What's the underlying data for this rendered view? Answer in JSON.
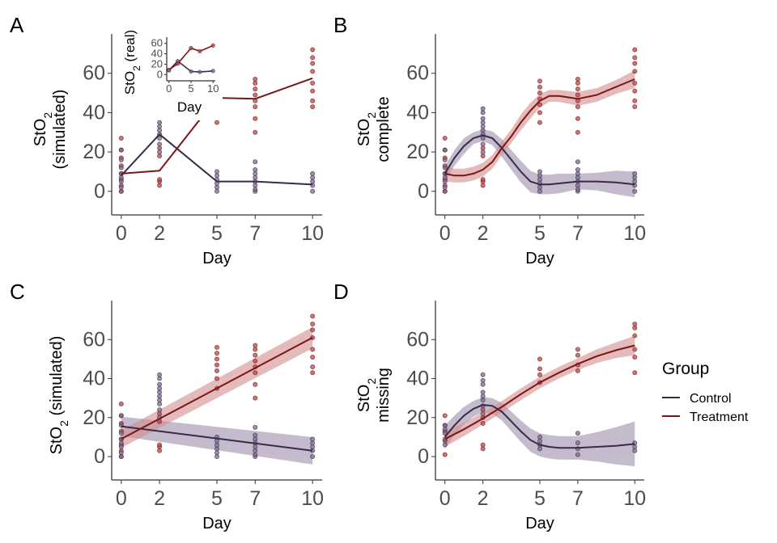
{
  "panels": {
    "A": {
      "tag": "A",
      "ylabel_line1": "StO",
      "ylabel_sub": "2",
      "ylabel_line2": "(simulated)",
      "xlabel": "Day",
      "inset": {
        "ylabel": "StO",
        "ylabel_sub": "2",
        "ylabel_rest": " (real)",
        "xlabel": "Day"
      }
    },
    "B": {
      "tag": "B",
      "ylabel_line1": "StO",
      "ylabel_sub": "2",
      "ylabel_line2": "complete",
      "xlabel": "Day"
    },
    "C": {
      "tag": "C",
      "ylabel_line1": "StO",
      "ylabel_sub": "2",
      "ylabel_rest": " (simulated)",
      "xlabel": "Day"
    },
    "D": {
      "tag": "D",
      "ylabel_line1": "StO",
      "ylabel_sub": "2",
      "ylabel_line2": "missing",
      "xlabel": "Day"
    }
  },
  "legend": {
    "title": "Group",
    "entries": [
      {
        "label": "Control",
        "color": "#3b2a4a"
      },
      {
        "label": "Treatment",
        "color": "#7b1516"
      }
    ]
  },
  "colors": {
    "control": "#3b2a4a",
    "treatment": "#7b1516",
    "control_band": "#9d8fab",
    "treatment_band": "#d48c8c",
    "control_point": "#7a6a8c",
    "treatment_point": "#b3484a"
  },
  "chart_data": [
    {
      "panel": "A",
      "type": "line",
      "xlabel": "Day",
      "ylabel": "StO2 (simulated)",
      "x_ticks": [
        0,
        2,
        5,
        7,
        10
      ],
      "y_ticks": [
        0,
        20,
        40,
        60
      ],
      "xlim": [
        -0.5,
        10.5
      ],
      "ylim": [
        -12,
        80
      ],
      "series": [
        {
          "name": "Control",
          "x": [
            0,
            2,
            5,
            7,
            10
          ],
          "y": [
            8,
            29,
            5,
            5,
            3.5
          ]
        },
        {
          "name": "Treatment",
          "x": [
            0,
            2,
            5,
            7,
            10
          ],
          "y": [
            9,
            10.5,
            47.5,
            47,
            57.5
          ]
        }
      ],
      "points": {
        "Control": [
          [
            0,
            0
          ],
          [
            0,
            2
          ],
          [
            0,
            5
          ],
          [
            0,
            7
          ],
          [
            0,
            9
          ],
          [
            0,
            12
          ],
          [
            0,
            16
          ],
          [
            0,
            21
          ],
          [
            2,
            20
          ],
          [
            2,
            24
          ],
          [
            2,
            27
          ],
          [
            2,
            29
          ],
          [
            2,
            31
          ],
          [
            2,
            33
          ],
          [
            2,
            35
          ],
          [
            2,
            37
          ],
          [
            2,
            40
          ],
          [
            2,
            42
          ],
          [
            5,
            0
          ],
          [
            5,
            2
          ],
          [
            5,
            4
          ],
          [
            5,
            6
          ],
          [
            5,
            8
          ],
          [
            5,
            10
          ],
          [
            7,
            0
          ],
          [
            7,
            1
          ],
          [
            7,
            3
          ],
          [
            7,
            5
          ],
          [
            7,
            7
          ],
          [
            7,
            9
          ],
          [
            7,
            11
          ],
          [
            7,
            15
          ],
          [
            10,
            0
          ],
          [
            10,
            3
          ],
          [
            10,
            5
          ],
          [
            10,
            7
          ],
          [
            10,
            9
          ]
        ],
        "Treatment": [
          [
            0,
            0
          ],
          [
            0,
            3
          ],
          [
            0,
            6
          ],
          [
            0,
            9
          ],
          [
            0,
            13
          ],
          [
            0,
            17
          ],
          [
            0,
            21
          ],
          [
            0,
            27
          ],
          [
            2,
            3
          ],
          [
            2,
            5
          ],
          [
            2,
            6
          ],
          [
            2,
            18
          ],
          [
            2,
            22
          ],
          [
            5,
            35
          ],
          [
            5,
            40
          ],
          [
            5,
            44
          ],
          [
            5,
            47
          ],
          [
            5,
            50
          ],
          [
            5,
            53
          ],
          [
            5,
            56
          ],
          [
            7,
            30
          ],
          [
            7,
            37
          ],
          [
            7,
            43
          ],
          [
            7,
            46
          ],
          [
            7,
            49
          ],
          [
            7,
            52
          ],
          [
            7,
            55
          ],
          [
            7,
            57
          ],
          [
            10,
            43
          ],
          [
            10,
            46
          ],
          [
            10,
            51
          ],
          [
            10,
            55
          ],
          [
            10,
            61
          ],
          [
            10,
            65
          ],
          [
            10,
            68
          ],
          [
            10,
            72
          ]
        ]
      }
    },
    {
      "panel": "A-inset",
      "type": "line",
      "xlabel": "Day",
      "ylabel": "StO2 (real)",
      "x_ticks": [
        0,
        5,
        10
      ],
      "y_ticks": [
        0,
        20,
        40,
        60
      ],
      "xlim": [
        -0.5,
        10.5
      ],
      "ylim": [
        -12,
        72
      ],
      "series": [
        {
          "name": "Control",
          "x": [
            0,
            2,
            5,
            7,
            10
          ],
          "y": [
            8,
            26,
            6,
            5,
            7
          ]
        },
        {
          "name": "Treatment",
          "x": [
            0,
            2,
            5,
            7,
            10
          ],
          "y": [
            9,
            21,
            51,
            45,
            56
          ]
        }
      ],
      "points": {
        "Control": [
          [
            0,
            8
          ],
          [
            2,
            26
          ],
          [
            5,
            6
          ],
          [
            7,
            5
          ],
          [
            10,
            7
          ]
        ],
        "Treatment": [
          [
            0,
            9
          ],
          [
            2,
            21
          ],
          [
            5,
            51
          ],
          [
            7,
            45
          ],
          [
            10,
            56
          ]
        ]
      }
    },
    {
      "panel": "B",
      "type": "line",
      "xlabel": "Day",
      "ylabel": "StO2 complete",
      "x_ticks": [
        0,
        2,
        5,
        7,
        10
      ],
      "y_ticks": [
        0,
        20,
        40,
        60
      ],
      "xlim": [
        -0.5,
        10.5
      ],
      "ylim": [
        -12,
        80
      ],
      "series": [
        {
          "name": "Control",
          "x": [
            0,
            0.5,
            1,
            1.5,
            2,
            2.5,
            3,
            3.5,
            4,
            4.5,
            5,
            5.5,
            6,
            7,
            8,
            9,
            10
          ],
          "y": [
            9,
            17,
            23,
            27,
            28.5,
            27,
            22,
            16,
            10,
            5,
            3.5,
            3.5,
            4,
            5,
            5,
            4.5,
            3.5
          ],
          "lower": [
            5,
            13,
            19,
            24,
            25.5,
            23.5,
            17.5,
            11,
            4.5,
            -0.5,
            -1.5,
            -1.5,
            -1,
            1,
            0.5,
            -1.5,
            -3
          ],
          "upper": [
            13,
            21,
            27,
            30,
            31.5,
            30.5,
            26.5,
            21,
            15.5,
            10.5,
            8.5,
            8.5,
            9,
            9,
            9.5,
            10.5,
            10
          ]
        },
        {
          "name": "Treatment",
          "x": [
            0,
            0.5,
            1,
            1.5,
            2,
            2.5,
            3,
            3.5,
            4,
            4.5,
            5,
            5.5,
            6,
            7,
            8,
            9,
            10
          ],
          "y": [
            9,
            8,
            8,
            9,
            11,
            15,
            22,
            28,
            35,
            41,
            46,
            48.5,
            48.5,
            47,
            49,
            53,
            57
          ],
          "lower": [
            5,
            4.5,
            4.5,
            5.5,
            7.5,
            11.5,
            18.5,
            24.5,
            31,
            37,
            42.5,
            45.5,
            45.5,
            43.5,
            45.5,
            49.5,
            52.5
          ],
          "upper": [
            13,
            11.5,
            11.5,
            12.5,
            14.5,
            18.5,
            25.5,
            31.5,
            39,
            45,
            49.5,
            51.5,
            51.5,
            50.5,
            52.5,
            56.5,
            61.5
          ]
        }
      ],
      "points": "same as panel A"
    },
    {
      "panel": "C",
      "type": "line",
      "xlabel": "Day",
      "ylabel": "StO2 (simulated)",
      "x_ticks": [
        0,
        2,
        5,
        7,
        10
      ],
      "y_ticks": [
        0,
        20,
        40,
        60
      ],
      "xlim": [
        -0.5,
        10.5
      ],
      "ylim": [
        -12,
        80
      ],
      "series": [
        {
          "name": "Control",
          "x": [
            0,
            10
          ],
          "y": [
            15.5,
            3
          ],
          "lower": [
            10.5,
            -4
          ],
          "upper": [
            20.5,
            10
          ]
        },
        {
          "name": "Treatment",
          "x": [
            0,
            10
          ],
          "y": [
            9,
            61
          ],
          "lower": [
            4.5,
            55.5
          ],
          "upper": [
            13.5,
            66.5
          ]
        }
      ],
      "points": "same as panel A"
    },
    {
      "panel": "D",
      "type": "line",
      "xlabel": "Day",
      "ylabel": "StO2 missing",
      "x_ticks": [
        0,
        2,
        5,
        7,
        10
      ],
      "y_ticks": [
        0,
        20,
        40,
        60
      ],
      "xlim": [
        -0.5,
        10.5
      ],
      "ylim": [
        -12,
        80
      ],
      "series": [
        {
          "name": "Control",
          "x": [
            0,
            0.5,
            1,
            1.5,
            2,
            2.5,
            3,
            3.5,
            4,
            4.5,
            5,
            5.5,
            6,
            7,
            8,
            9,
            10
          ],
          "y": [
            10,
            16,
            21,
            24.5,
            26.5,
            26,
            23,
            18,
            13,
            8.5,
            6,
            5,
            4.5,
            4.5,
            5,
            5.5,
            6.5
          ],
          "lower": [
            4,
            11,
            16.5,
            20.5,
            22.5,
            22,
            18.5,
            13,
            7.5,
            2.5,
            0,
            -1,
            -1.5,
            -1.5,
            -2.5,
            -4,
            -5
          ],
          "upper": [
            16,
            21,
            25.5,
            28.5,
            30.5,
            30,
            27.5,
            23,
            18.5,
            14.5,
            12,
            11,
            10.5,
            10.5,
            12.5,
            15,
            18
          ]
        },
        {
          "name": "Treatment",
          "x": [
            0,
            1,
            2,
            3,
            4,
            5,
            6,
            7,
            8,
            9,
            10
          ],
          "y": [
            9,
            14,
            19.5,
            25.5,
            32,
            38,
            43,
            47.5,
            51.5,
            54.5,
            57
          ],
          "lower": [
            5,
            10.5,
            16.5,
            22.5,
            29,
            35,
            40,
            44.5,
            48,
            50.5,
            52
          ],
          "upper": [
            13,
            17.5,
            22.5,
            28.5,
            35,
            41,
            46,
            50.5,
            55,
            58.5,
            62
          ]
        }
      ],
      "points": {
        "Control": [
          [
            0,
            6
          ],
          [
            0,
            9
          ],
          [
            0,
            12
          ],
          [
            0,
            14
          ],
          [
            0,
            16
          ],
          [
            2,
            22
          ],
          [
            2,
            26
          ],
          [
            2,
            29
          ],
          [
            2,
            31
          ],
          [
            2,
            33
          ],
          [
            2,
            37
          ],
          [
            2,
            39
          ],
          [
            2,
            42
          ],
          [
            5,
            4
          ],
          [
            5,
            6
          ],
          [
            5,
            8
          ],
          [
            5,
            10
          ],
          [
            7,
            1
          ],
          [
            7,
            4
          ],
          [
            7,
            7
          ],
          [
            7,
            12
          ],
          [
            10,
            3
          ],
          [
            10,
            5
          ],
          [
            10,
            7
          ]
        ],
        "Treatment": [
          [
            0,
            1
          ],
          [
            0,
            8
          ],
          [
            0,
            13
          ],
          [
            0,
            16
          ],
          [
            0,
            21
          ],
          [
            2,
            4
          ],
          [
            2,
            6
          ],
          [
            2,
            17
          ],
          [
            2,
            20
          ],
          [
            2,
            24
          ],
          [
            5,
            38
          ],
          [
            5,
            42
          ],
          [
            5,
            45
          ],
          [
            5,
            50
          ],
          [
            7,
            44
          ],
          [
            7,
            47
          ],
          [
            7,
            52
          ],
          [
            7,
            55
          ],
          [
            10,
            43
          ],
          [
            10,
            51
          ],
          [
            10,
            55
          ],
          [
            10,
            62
          ],
          [
            10,
            66
          ],
          [
            10,
            68
          ]
        ]
      }
    }
  ]
}
